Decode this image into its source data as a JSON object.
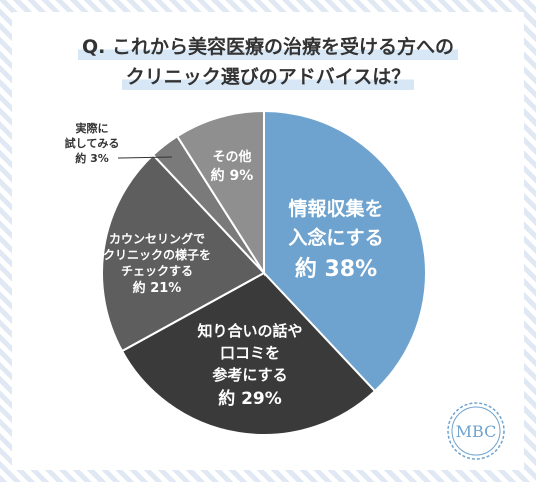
{
  "title": {
    "line1": "Q. これから美容医療の治療を受ける方への",
    "line2": "クリニック選びのアドバイスは？"
  },
  "chart_data": {
    "type": "pie",
    "start_angle_deg": 0,
    "direction": "clockwise",
    "slices": [
      {
        "lines": [
          "情報収集を",
          "入念にする"
        ],
        "pct_text": "約 38%",
        "value": 38,
        "color": "#6fa3cf",
        "text_color": "#ffffff",
        "label_pos": "inside"
      },
      {
        "lines": [
          "知り合いの話や",
          "口コミを",
          "参考にする"
        ],
        "pct_text": "約 29%",
        "value": 29,
        "color": "#3a3a3a",
        "text_color": "#ffffff",
        "label_pos": "inside"
      },
      {
        "lines": [
          "カウンセリングで",
          "クリニックの様子を",
          "チェックする"
        ],
        "pct_text": "約 21%",
        "value": 21,
        "color": "#5e5e5e",
        "text_color": "#ffffff",
        "label_pos": "inside"
      },
      {
        "lines": [
          "実際に",
          "試してみる"
        ],
        "pct_text": "約 3%",
        "value": 3,
        "color": "#7a7a7a",
        "text_color": "#333333",
        "label_pos": "outside"
      },
      {
        "lines": [
          "その他"
        ],
        "pct_text": "約 9%",
        "value": 9,
        "color": "#8f8f8f",
        "text_color": "#ffffff",
        "label_pos": "inside"
      }
    ]
  },
  "logo": {
    "text": "MBC",
    "color": "#6fa3cf"
  }
}
